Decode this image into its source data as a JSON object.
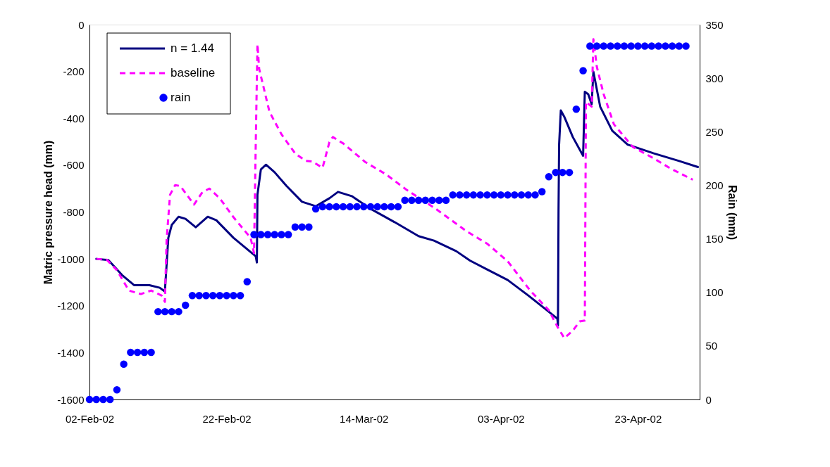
{
  "chart_data": {
    "type": "line",
    "ylabel": "Matric pressure head (mm)",
    "y2label": "Rain (mm)",
    "xlim": [
      "2002-02-02T00:00",
      "2002-05-02T00:00"
    ],
    "xticks": [
      {
        "value": "2002-02-02T00:00",
        "label": "02-Feb-02"
      },
      {
        "value": "2002-02-22T00:00",
        "label": "22-Feb-02"
      },
      {
        "value": "2002-03-14T00:00",
        "label": "14-Mar-02"
      },
      {
        "value": "2002-04-03T00:00",
        "label": "03-Apr-02"
      },
      {
        "value": "2002-04-23T00:00",
        "label": "23-Apr-02"
      }
    ],
    "ylim": [
      -1600,
      0
    ],
    "yticks": [
      -1600,
      -1400,
      -1200,
      -1000,
      -800,
      -600,
      -400,
      -200,
      0
    ],
    "y2lim": [
      0,
      350
    ],
    "y2ticks": [
      0,
      50,
      100,
      150,
      200,
      250,
      300,
      350
    ],
    "grid": false,
    "legend": "top left",
    "series": [
      {
        "name": "n = 1.44",
        "type": "line",
        "color": "#000080",
        "line_style": "solid",
        "x": [
          "2002-02-03T00:00",
          "2002-02-04T18:00",
          "2002-02-06T18:00",
          "2002-02-08T12:00",
          "2002-02-10T18:00",
          "2002-02-12T06:00",
          "2002-02-13T00:00",
          "2002-02-13T12:00",
          "2002-02-14T00:00",
          "2002-02-15T00:00",
          "2002-02-16T00:00",
          "2002-02-17T12:00",
          "2002-02-19T06:00",
          "2002-02-20T12:00",
          "2002-02-23T00:00",
          "2002-02-26T06:00",
          "2002-02-26T10:00",
          "2002-02-26T12:00",
          "2002-02-27T00:00",
          "2002-02-27T18:00",
          "2002-03-01T00:00",
          "2002-03-02T18:00",
          "2002-03-05T00:00",
          "2002-03-07T00:00",
          "2002-03-09T00:00",
          "2002-03-10T06:00",
          "2002-03-12T06:00",
          "2002-03-15T00:00",
          "2002-03-18T12:00",
          "2002-03-22T00:00",
          "2002-03-24T06:00",
          "2002-03-27T12:00",
          "2002-03-29T12:00",
          "2002-04-01T00:00",
          "2002-04-04T00:00",
          "2002-04-07T00:00",
          "2002-04-09T12:00",
          "2002-04-11T06:00",
          "2002-04-11T08:00",
          "2002-04-11T10:00",
          "2002-04-11T12:00",
          "2002-04-11T18:00",
          "2002-04-12T06:00",
          "2002-04-13T12:00",
          "2002-04-15T00:00",
          "2002-04-15T06:00",
          "2002-04-15T18:00",
          "2002-04-16T06:00",
          "2002-04-16T12:00",
          "2002-04-17T12:00",
          "2002-04-19T06:00",
          "2002-04-21T12:00",
          "2002-04-25T06:00",
          "2002-04-29T00:00",
          "2002-05-01T18:00"
        ],
        "values": [
          -1000,
          -1005,
          -1069,
          -1112,
          -1112,
          -1123,
          -1139,
          -910,
          -855,
          -820,
          -829,
          -865,
          -820,
          -835,
          -910,
          -989,
          -1015,
          -726,
          -618,
          -598,
          -630,
          -689,
          -756,
          -775,
          -741,
          -714,
          -732,
          -786,
          -843,
          -903,
          -922,
          -967,
          -1007,
          -1045,
          -1090,
          -1156,
          -1214,
          -1255,
          -1284,
          -790,
          -512,
          -366,
          -393,
          -480,
          -560,
          -287,
          -297,
          -340,
          -201,
          -351,
          -453,
          -512,
          -549,
          -582,
          -608
        ]
      },
      {
        "name": "baseline",
        "type": "line",
        "color": "#ff00ff",
        "line_style": "dashed",
        "x": [
          "2002-02-03T00:00",
          "2002-02-04T12:00",
          "2002-02-06T00:00",
          "2002-02-07T18:00",
          "2002-02-09T12:00",
          "2002-02-11T00:00",
          "2002-02-12T12:00",
          "2002-02-13T00:00",
          "2002-02-13T06:00",
          "2002-02-13T18:00",
          "2002-02-14T12:00",
          "2002-02-15T06:00",
          "2002-02-17T06:00",
          "2002-02-18T12:00",
          "2002-02-19T12:00",
          "2002-02-21T00:00",
          "2002-02-23T00:00",
          "2002-02-25T12:00",
          "2002-02-26T00:00",
          "2002-02-26T06:00",
          "2002-02-26T12:00",
          "2002-02-26T18:00",
          "2002-02-28T06:00",
          "2002-03-02T00:00",
          "2002-03-04T00:00",
          "2002-03-05T12:00",
          "2002-03-06T12:00",
          "2002-03-08T00:00",
          "2002-03-09T00:00",
          "2002-03-09T12:00",
          "2002-03-11T00:00",
          "2002-03-14T06:00",
          "2002-03-17T06:00",
          "2002-03-20T06:00",
          "2002-03-24T12:00",
          "2002-03-29T00:00",
          "2002-04-01T00:00",
          "2002-04-04T00:00",
          "2002-04-07T06:00",
          "2002-04-10T00:00",
          "2002-04-11T06:00",
          "2002-04-12T06:00",
          "2002-04-13T12:00",
          "2002-04-14T12:00",
          "2002-04-15T06:00",
          "2002-04-15T10:00",
          "2002-04-16T06:00",
          "2002-04-16T12:00",
          "2002-04-17T00:00",
          "2002-04-18T00:00",
          "2002-04-19T12:00",
          "2002-04-22T06:00",
          "2002-04-25T06:00",
          "2002-04-27T18:00",
          "2002-05-01T00:00"
        ],
        "values": [
          -1000,
          -1003,
          -1048,
          -1135,
          -1150,
          -1135,
          -1156,
          -1183,
          -919,
          -726,
          -685,
          -689,
          -768,
          -714,
          -700,
          -741,
          -822,
          -910,
          -975,
          -512,
          -84,
          -189,
          -372,
          -468,
          -550,
          -581,
          -584,
          -611,
          -501,
          -480,
          -507,
          -587,
          -639,
          -705,
          -786,
          -882,
          -935,
          -1010,
          -1134,
          -1219,
          -1289,
          -1338,
          -1306,
          -1267,
          -1263,
          -330,
          -350,
          -62,
          -180,
          -297,
          -426,
          -522,
          -570,
          -614,
          -662
        ]
      },
      {
        "name": "rain",
        "type": "scatter",
        "axis": "y2",
        "color": "#0000ff",
        "marker": "circle",
        "x": [
          "2002-02-02T00:00",
          "2002-02-03T00:00",
          "2002-02-04T00:00",
          "2002-02-05T00:00",
          "2002-02-06T00:00",
          "2002-02-07T00:00",
          "2002-02-08T00:00",
          "2002-02-09T00:00",
          "2002-02-10T00:00",
          "2002-02-11T00:00",
          "2002-02-12T00:00",
          "2002-02-13T00:00",
          "2002-02-14T00:00",
          "2002-02-15T00:00",
          "2002-02-16T00:00",
          "2002-02-17T00:00",
          "2002-02-18T00:00",
          "2002-02-19T00:00",
          "2002-02-20T00:00",
          "2002-02-21T00:00",
          "2002-02-22T00:00",
          "2002-02-23T00:00",
          "2002-02-24T00:00",
          "2002-02-25T00:00",
          "2002-02-26T00:00",
          "2002-02-27T00:00",
          "2002-02-28T00:00",
          "2002-03-01T00:00",
          "2002-03-02T00:00",
          "2002-03-03T00:00",
          "2002-03-04T00:00",
          "2002-03-05T00:00",
          "2002-03-06T00:00",
          "2002-03-07T00:00",
          "2002-03-08T00:00",
          "2002-03-09T00:00",
          "2002-03-10T00:00",
          "2002-03-11T00:00",
          "2002-03-12T00:00",
          "2002-03-13T00:00",
          "2002-03-14T00:00",
          "2002-03-15T00:00",
          "2002-03-16T00:00",
          "2002-03-17T00:00",
          "2002-03-18T00:00",
          "2002-03-19T00:00",
          "2002-03-20T00:00",
          "2002-03-21T00:00",
          "2002-03-22T00:00",
          "2002-03-23T00:00",
          "2002-03-24T00:00",
          "2002-03-25T00:00",
          "2002-03-26T00:00",
          "2002-03-27T00:00",
          "2002-03-28T00:00",
          "2002-03-29T00:00",
          "2002-03-30T00:00",
          "2002-03-31T00:00",
          "2002-04-01T00:00",
          "2002-04-02T00:00",
          "2002-04-03T00:00",
          "2002-04-04T00:00",
          "2002-04-05T00:00",
          "2002-04-06T00:00",
          "2002-04-07T00:00",
          "2002-04-08T00:00",
          "2002-04-09T00:00",
          "2002-04-10T00:00",
          "2002-04-11T00:00",
          "2002-04-12T00:00",
          "2002-04-13T00:00",
          "2002-04-14T00:00",
          "2002-04-15T00:00",
          "2002-04-16T00:00",
          "2002-04-17T00:00",
          "2002-04-18T00:00",
          "2002-04-19T00:00",
          "2002-04-20T00:00",
          "2002-04-21T00:00",
          "2002-04-22T00:00",
          "2002-04-23T00:00",
          "2002-04-24T00:00",
          "2002-04-25T00:00",
          "2002-04-26T00:00",
          "2002-04-27T00:00",
          "2002-04-28T00:00",
          "2002-04-29T00:00",
          "2002-04-30T00:00"
        ],
        "values": [
          0,
          0,
          0,
          0,
          9,
          33,
          44,
          44,
          44,
          44,
          82,
          82,
          82,
          82,
          88,
          97,
          97,
          97,
          97,
          97,
          97,
          97,
          97,
          110,
          154,
          154,
          154,
          154,
          154,
          154,
          161,
          161,
          161,
          178,
          180,
          180,
          180,
          180,
          180,
          180,
          180,
          180,
          180,
          180,
          180,
          180,
          186,
          186,
          186,
          186,
          186,
          186,
          186,
          191,
          191,
          191,
          191,
          191,
          191,
          191,
          191,
          191,
          191,
          191,
          191,
          191,
          194,
          208,
          212,
          212,
          212,
          271,
          307,
          330,
          330,
          330,
          330,
          330,
          330,
          330,
          330,
          330,
          330,
          330,
          330,
          330,
          330,
          330
        ]
      }
    ]
  }
}
